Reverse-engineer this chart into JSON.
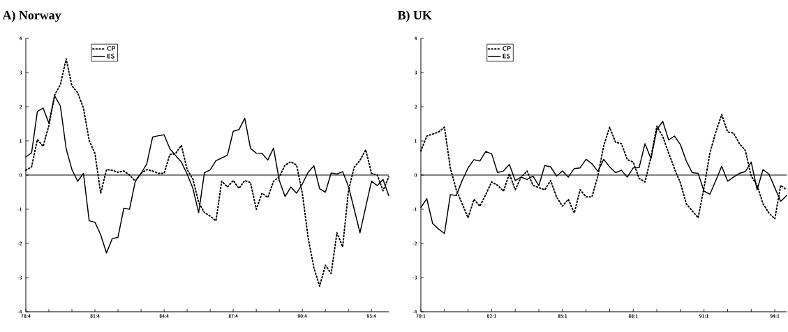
{
  "chart_data": [
    {
      "type": "line",
      "title": "A) Norway",
      "categories": [
        "78:4",
        null,
        null,
        null,
        null,
        null,
        null,
        null,
        null,
        null,
        null,
        null,
        "81:4",
        null,
        null,
        null,
        null,
        null,
        null,
        null,
        null,
        null,
        null,
        null,
        "84:4",
        null,
        null,
        null,
        null,
        null,
        null,
        null,
        null,
        null,
        null,
        null,
        "87:4",
        null,
        null,
        null,
        null,
        null,
        null,
        null,
        null,
        null,
        null,
        null,
        "90:4",
        null,
        null,
        null,
        null,
        null,
        null,
        null,
        null,
        null,
        null,
        null,
        "93:4",
        null,
        null,
        null
      ],
      "series": [
        {
          "name": "CP",
          "color": "#000000",
          "line_style": "dotted",
          "values": [
            0.14,
            0.24,
            1.04,
            0.84,
            1.45,
            2.34,
            2.65,
            3.4,
            2.61,
            2.41,
            1.96,
            1.01,
            0.63,
            -0.53,
            0.16,
            0.14,
            0.08,
            0.12,
            0.0,
            -0.18,
            0.05,
            0.16,
            0.12,
            0.05,
            0.05,
            0.6,
            0.63,
            0.87,
            0.16,
            -0.12,
            -0.8,
            -1.1,
            -1.2,
            -1.34,
            -0.18,
            -0.35,
            -0.16,
            -0.39,
            -0.16,
            -0.22,
            -1.0,
            -0.53,
            -0.66,
            -0.18,
            -0.05,
            0.29,
            0.39,
            0.29,
            -0.53,
            -1.83,
            -2.71,
            -3.25,
            -2.64,
            -2.88,
            -1.69,
            -2.1,
            -0.46,
            0.23,
            0.43,
            0.74,
            0.05,
            0.0,
            -0.46,
            -0.05
          ]
        },
        {
          "name": "ES",
          "color": "#000000",
          "line_style": "solid",
          "values": [
            0.53,
            0.65,
            1.86,
            1.96,
            1.52,
            2.32,
            2.02,
            0.77,
            0.16,
            -0.18,
            0.05,
            -1.34,
            -1.38,
            -1.75,
            -2.28,
            -1.86,
            -1.82,
            -0.97,
            -1.0,
            -0.18,
            0.05,
            0.33,
            1.11,
            1.15,
            1.18,
            0.77,
            0.57,
            0.38,
            0.03,
            -0.39,
            -1.1,
            0.07,
            0.15,
            0.42,
            0.5,
            0.58,
            1.28,
            1.33,
            1.66,
            0.78,
            0.64,
            0.63,
            0.44,
            0.79,
            -0.16,
            -0.63,
            -0.35,
            -0.53,
            -0.26,
            0.08,
            0.27,
            -0.4,
            -0.5,
            0.06,
            0.03,
            0.1,
            -0.33,
            -1.0,
            -1.69,
            -0.93,
            -0.18,
            -0.31,
            -0.13,
            -0.6
          ]
        }
      ],
      "ylim": [
        -4,
        4
      ],
      "yticks": [
        -4,
        -3,
        -2,
        -1,
        0,
        1,
        2,
        3,
        4
      ],
      "ref_lines": [
        {
          "axis": "y",
          "value": 0
        }
      ],
      "legend": "top left"
    },
    {
      "type": "line",
      "title": "B) UK",
      "categories": [
        "79:1",
        null,
        null,
        null,
        null,
        null,
        null,
        null,
        null,
        null,
        null,
        null,
        "82:1",
        null,
        null,
        null,
        null,
        null,
        null,
        null,
        null,
        null,
        null,
        null,
        "85:1",
        null,
        null,
        null,
        null,
        null,
        null,
        null,
        null,
        null,
        null,
        null,
        "88:1",
        null,
        null,
        null,
        null,
        null,
        null,
        null,
        null,
        null,
        null,
        null,
        "91:1",
        null,
        null,
        null,
        null,
        null,
        null,
        null,
        null,
        null,
        null,
        null,
        "94:1",
        null,
        null
      ],
      "series": [
        {
          "name": "CP",
          "color": "#000000",
          "line_style": "dotted",
          "values": [
            0.7,
            1.14,
            1.2,
            1.26,
            1.4,
            0.2,
            -0.43,
            -0.84,
            -1.25,
            -0.71,
            -0.91,
            -0.57,
            -0.2,
            -0.3,
            -0.47,
            0.04,
            -0.43,
            -0.06,
            0.12,
            -0.3,
            -0.37,
            -0.43,
            -0.16,
            -0.64,
            -0.91,
            -0.71,
            -1.11,
            -0.43,
            -0.64,
            -0.64,
            -0.03,
            0.86,
            1.4,
            0.96,
            0.92,
            0.45,
            0.38,
            -0.1,
            -0.2,
            0.52,
            1.43,
            1.13,
            0.65,
            0.18,
            -0.23,
            -0.84,
            -1.05,
            -1.25,
            -0.37,
            0.65,
            1.26,
            1.77,
            1.26,
            1.23,
            0.92,
            0.72,
            -0.03,
            -0.3,
            -0.84,
            -1.11,
            -1.28,
            -0.3,
            -0.43
          ]
        },
        {
          "name": "ES",
          "color": "#000000",
          "line_style": "solid",
          "values": [
            -0.95,
            -0.69,
            -1.42,
            -1.58,
            -1.71,
            -0.57,
            -0.6,
            -0.16,
            0.21,
            0.45,
            0.41,
            0.69,
            0.62,
            0.07,
            0.12,
            0.31,
            -0.16,
            -0.06,
            -0.13,
            -0.03,
            -0.31,
            0.28,
            0.24,
            -0.03,
            0.12,
            -0.06,
            0.19,
            0.21,
            0.46,
            0.33,
            0.11,
            0.46,
            0.24,
            0.07,
            0.14,
            -0.06,
            0.21,
            0.22,
            0.92,
            0.48,
            1.33,
            1.57,
            1.03,
            1.14,
            0.89,
            0.41,
            0.07,
            0.05,
            -0.47,
            -0.56,
            -0.16,
            0.26,
            -0.18,
            -0.06,
            0.05,
            0.1,
            0.38,
            -0.43,
            0.16,
            0.03,
            -0.37,
            -0.77,
            -0.6
          ]
        }
      ],
      "ylim": [
        -4,
        4
      ],
      "yticks": [
        -4,
        -3,
        -2,
        -1,
        0,
        1,
        2,
        3,
        4
      ],
      "ref_lines": [
        {
          "axis": "y",
          "value": 0
        }
      ],
      "legend": "top left"
    }
  ]
}
